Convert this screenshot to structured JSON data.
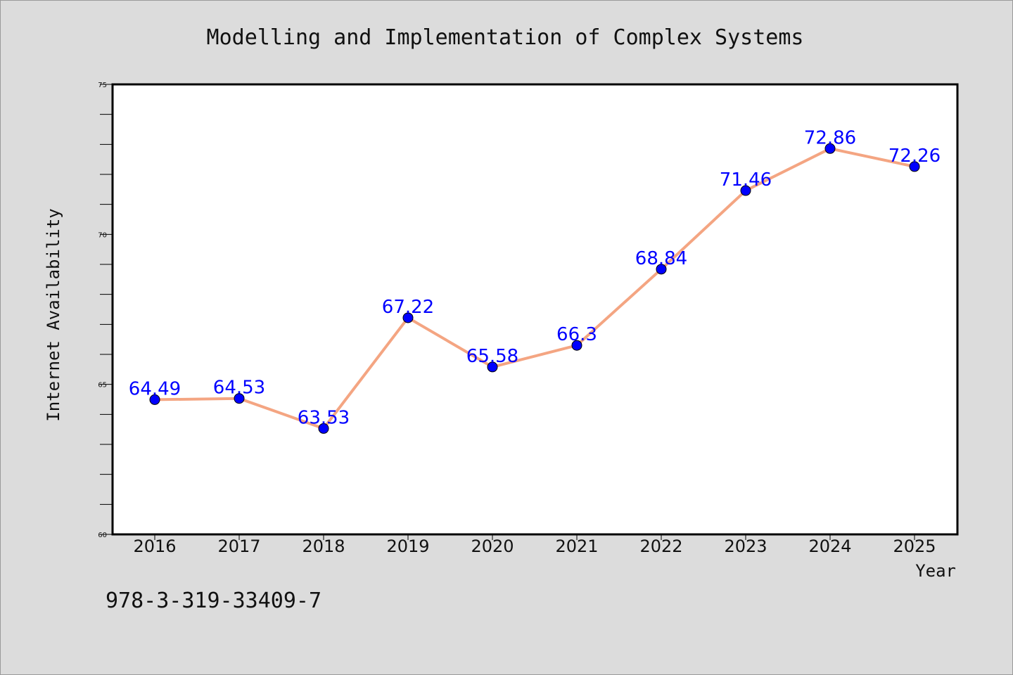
{
  "chart_data": {
    "type": "line",
    "title": "Modelling and Implementation of Complex Systems",
    "xlabel": "Year",
    "ylabel": "Internet Availability",
    "categories": [
      "2016",
      "2017",
      "2018",
      "2019",
      "2020",
      "2021",
      "2022",
      "2023",
      "2024",
      "2025"
    ],
    "series": [
      {
        "values": [
          64.49,
          64.53,
          63.53,
          67.22,
          65.58,
          66.3,
          68.84,
          71.46,
          72.86,
          72.26
        ],
        "data_labels": [
          "64.49",
          "64.53",
          "63.53",
          "67.22",
          "65.58",
          "66.3",
          "68.84",
          "71.46",
          "72.86",
          "72.26"
        ],
        "line_color": "#f4a582",
        "marker_color": "#0000ff"
      }
    ],
    "ylim": [
      60,
      75
    ],
    "yticks": [
      "60",
      "65",
      "70",
      "75"
    ],
    "grid": false,
    "legend": "none"
  },
  "footer_text": "978-3-319-33409-7",
  "colors": {
    "background": "#dcdcdc",
    "plot_background": "#ffffff",
    "line": "#f4a582",
    "marker": "#0000ff",
    "data_label": "#0000ff"
  }
}
